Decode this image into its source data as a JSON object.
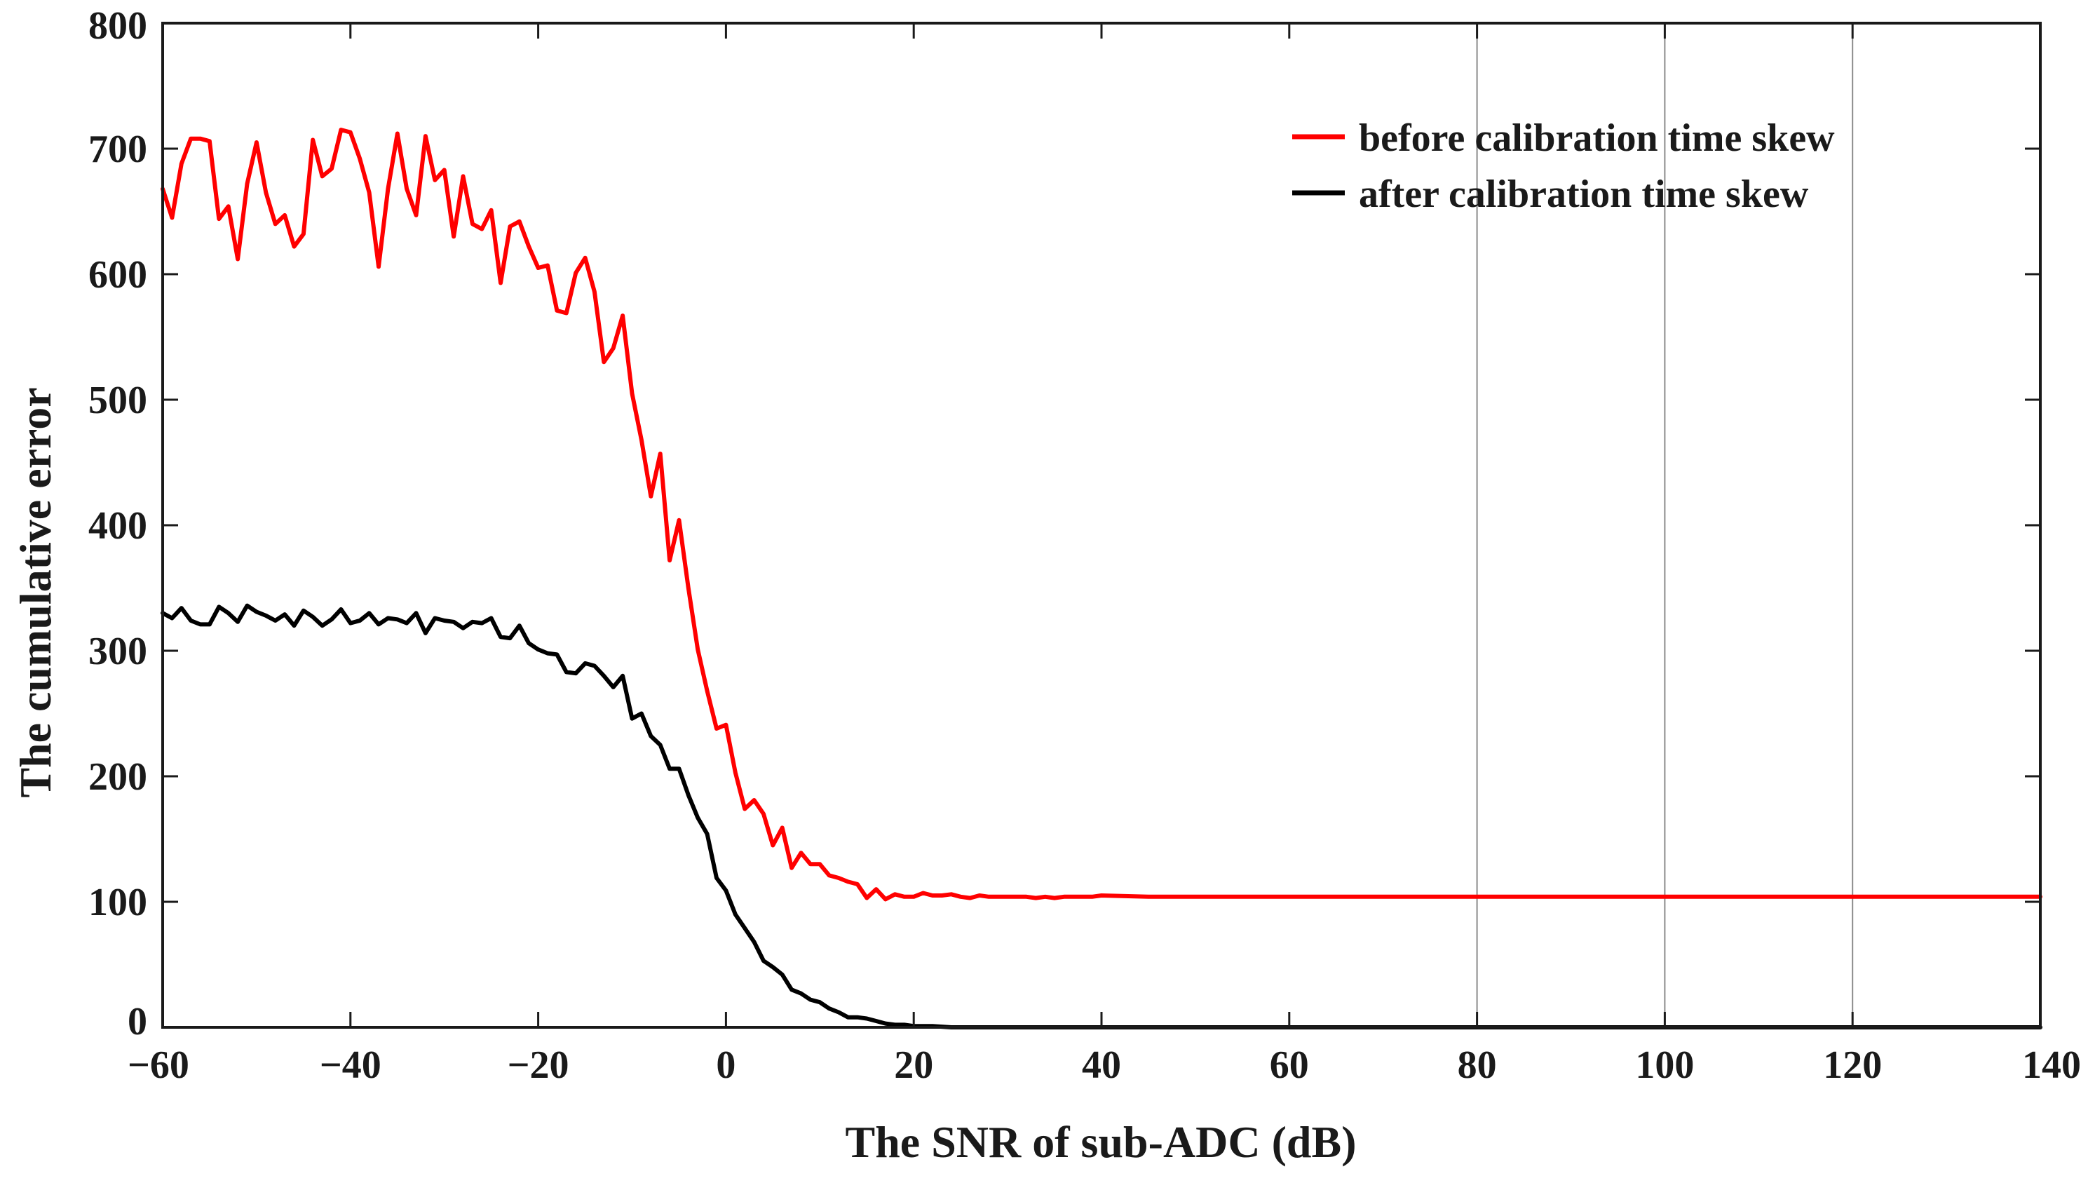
{
  "chart_data": {
    "type": "line",
    "xlabel": "The SNR of sub-ADC (dB)",
    "ylabel": "The cumulative error",
    "xlim": [
      -60,
      140
    ],
    "ylim": [
      0,
      800
    ],
    "xticks": [
      -60,
      -40,
      -20,
      0,
      20,
      40,
      60,
      80,
      100,
      120,
      140
    ],
    "xtick_labels": [
      "−60",
      "−40",
      "−20",
      "0",
      "20",
      "40",
      "60",
      "80",
      "100",
      "120",
      "140"
    ],
    "yticks": [
      0,
      100,
      200,
      300,
      400,
      500,
      600,
      700,
      800
    ],
    "ytick_labels": [
      "0",
      "100",
      "200",
      "300",
      "400",
      "500",
      "600",
      "700",
      "800"
    ],
    "grid_x_at": [
      80,
      100,
      120
    ],
    "legend_position": "top-right",
    "series": [
      {
        "name": "before calibration time skew",
        "color": "#ff0000",
        "x": [
          -60,
          -59,
          -58,
          -57,
          -56,
          -55,
          -54,
          -53,
          -52,
          -51,
          -50,
          -49,
          -48,
          -47,
          -46,
          -45,
          -44,
          -43,
          -42,
          -41,
          -40,
          -39,
          -38,
          -37,
          -36,
          -35,
          -34,
          -33,
          -32,
          -31,
          -30,
          -29,
          -28,
          -27,
          -26,
          -25,
          -24,
          -23,
          -22,
          -21,
          -20,
          -19,
          -18,
          -17,
          -16,
          -15,
          -14,
          -13,
          -12,
          -11,
          -10,
          -9,
          -8,
          -7,
          -6,
          -5,
          -4,
          -3,
          -2,
          -1,
          0,
          1,
          2,
          3,
          4,
          5,
          6,
          7,
          8,
          9,
          10,
          11,
          12,
          13,
          14,
          15,
          16,
          17,
          18,
          19,
          20,
          21,
          22,
          23,
          24,
          25,
          26,
          27,
          28,
          29,
          30,
          31,
          32,
          33,
          34,
          35,
          36,
          37,
          38,
          39,
          40,
          45,
          50,
          60,
          70,
          80,
          90,
          100,
          110,
          120,
          130,
          140
        ],
        "y": [
          668,
          645,
          688,
          708,
          708,
          706,
          644,
          654,
          612,
          672,
          705,
          665,
          640,
          647,
          622,
          632,
          707,
          678,
          684,
          715,
          713,
          692,
          665,
          606,
          668,
          712,
          668,
          647,
          710,
          675,
          683,
          630,
          678,
          640,
          636,
          651,
          593,
          638,
          642,
          622,
          605,
          607,
          571,
          569,
          601,
          613,
          586,
          530,
          541,
          567,
          505,
          468,
          423,
          457,
          372,
          404,
          350,
          301,
          268,
          238,
          241,
          203,
          174,
          181,
          170,
          145,
          159,
          127,
          139,
          130,
          130,
          121,
          119,
          116,
          114,
          103,
          110,
          102,
          106,
          104,
          104,
          107,
          105,
          105,
          106,
          104,
          103,
          105,
          104,
          104,
          104,
          104,
          104,
          103,
          104,
          103,
          104,
          104,
          104,
          104,
          105,
          104,
          104,
          104,
          104,
          104,
          104,
          104,
          104,
          104,
          104,
          104
        ]
      },
      {
        "name": "after calibration time skew",
        "color": "#000000",
        "x": [
          -60,
          -59,
          -58,
          -57,
          -56,
          -55,
          -54,
          -53,
          -52,
          -51,
          -50,
          -49,
          -48,
          -47,
          -46,
          -45,
          -44,
          -43,
          -42,
          -41,
          -40,
          -39,
          -38,
          -37,
          -36,
          -35,
          -34,
          -33,
          -32,
          -31,
          -30,
          -29,
          -28,
          -27,
          -26,
          -25,
          -24,
          -23,
          -22,
          -21,
          -20,
          -19,
          -18,
          -17,
          -16,
          -15,
          -14,
          -13,
          -12,
          -11,
          -10,
          -9,
          -8,
          -7,
          -6,
          -5,
          -4,
          -3,
          -2,
          -1,
          0,
          1,
          2,
          3,
          4,
          5,
          6,
          7,
          8,
          9,
          10,
          11,
          12,
          13,
          14,
          15,
          16,
          17,
          18,
          19,
          20,
          22,
          24,
          26,
          28,
          30,
          35,
          40,
          50,
          60,
          80,
          100,
          120,
          140
        ],
        "y": [
          330,
          326,
          334,
          324,
          321,
          321,
          335,
          330,
          323,
          336,
          331,
          328,
          324,
          329,
          320,
          332,
          327,
          320,
          325,
          333,
          322,
          324,
          330,
          321,
          326,
          325,
          322,
          330,
          314,
          326,
          324,
          323,
          318,
          323,
          322,
          326,
          311,
          310,
          320,
          306,
          301,
          298,
          297,
          283,
          282,
          290,
          288,
          280,
          271,
          280,
          246,
          250,
          232,
          225,
          206,
          206,
          185,
          167,
          154,
          119,
          109,
          90,
          79,
          68,
          53,
          48,
          42,
          30,
          27,
          22,
          20,
          15,
          12,
          8,
          8,
          7,
          5,
          3,
          2,
          2,
          1,
          1,
          0,
          0,
          0,
          0,
          0,
          0,
          0,
          0,
          0,
          0,
          0,
          0
        ]
      }
    ]
  }
}
